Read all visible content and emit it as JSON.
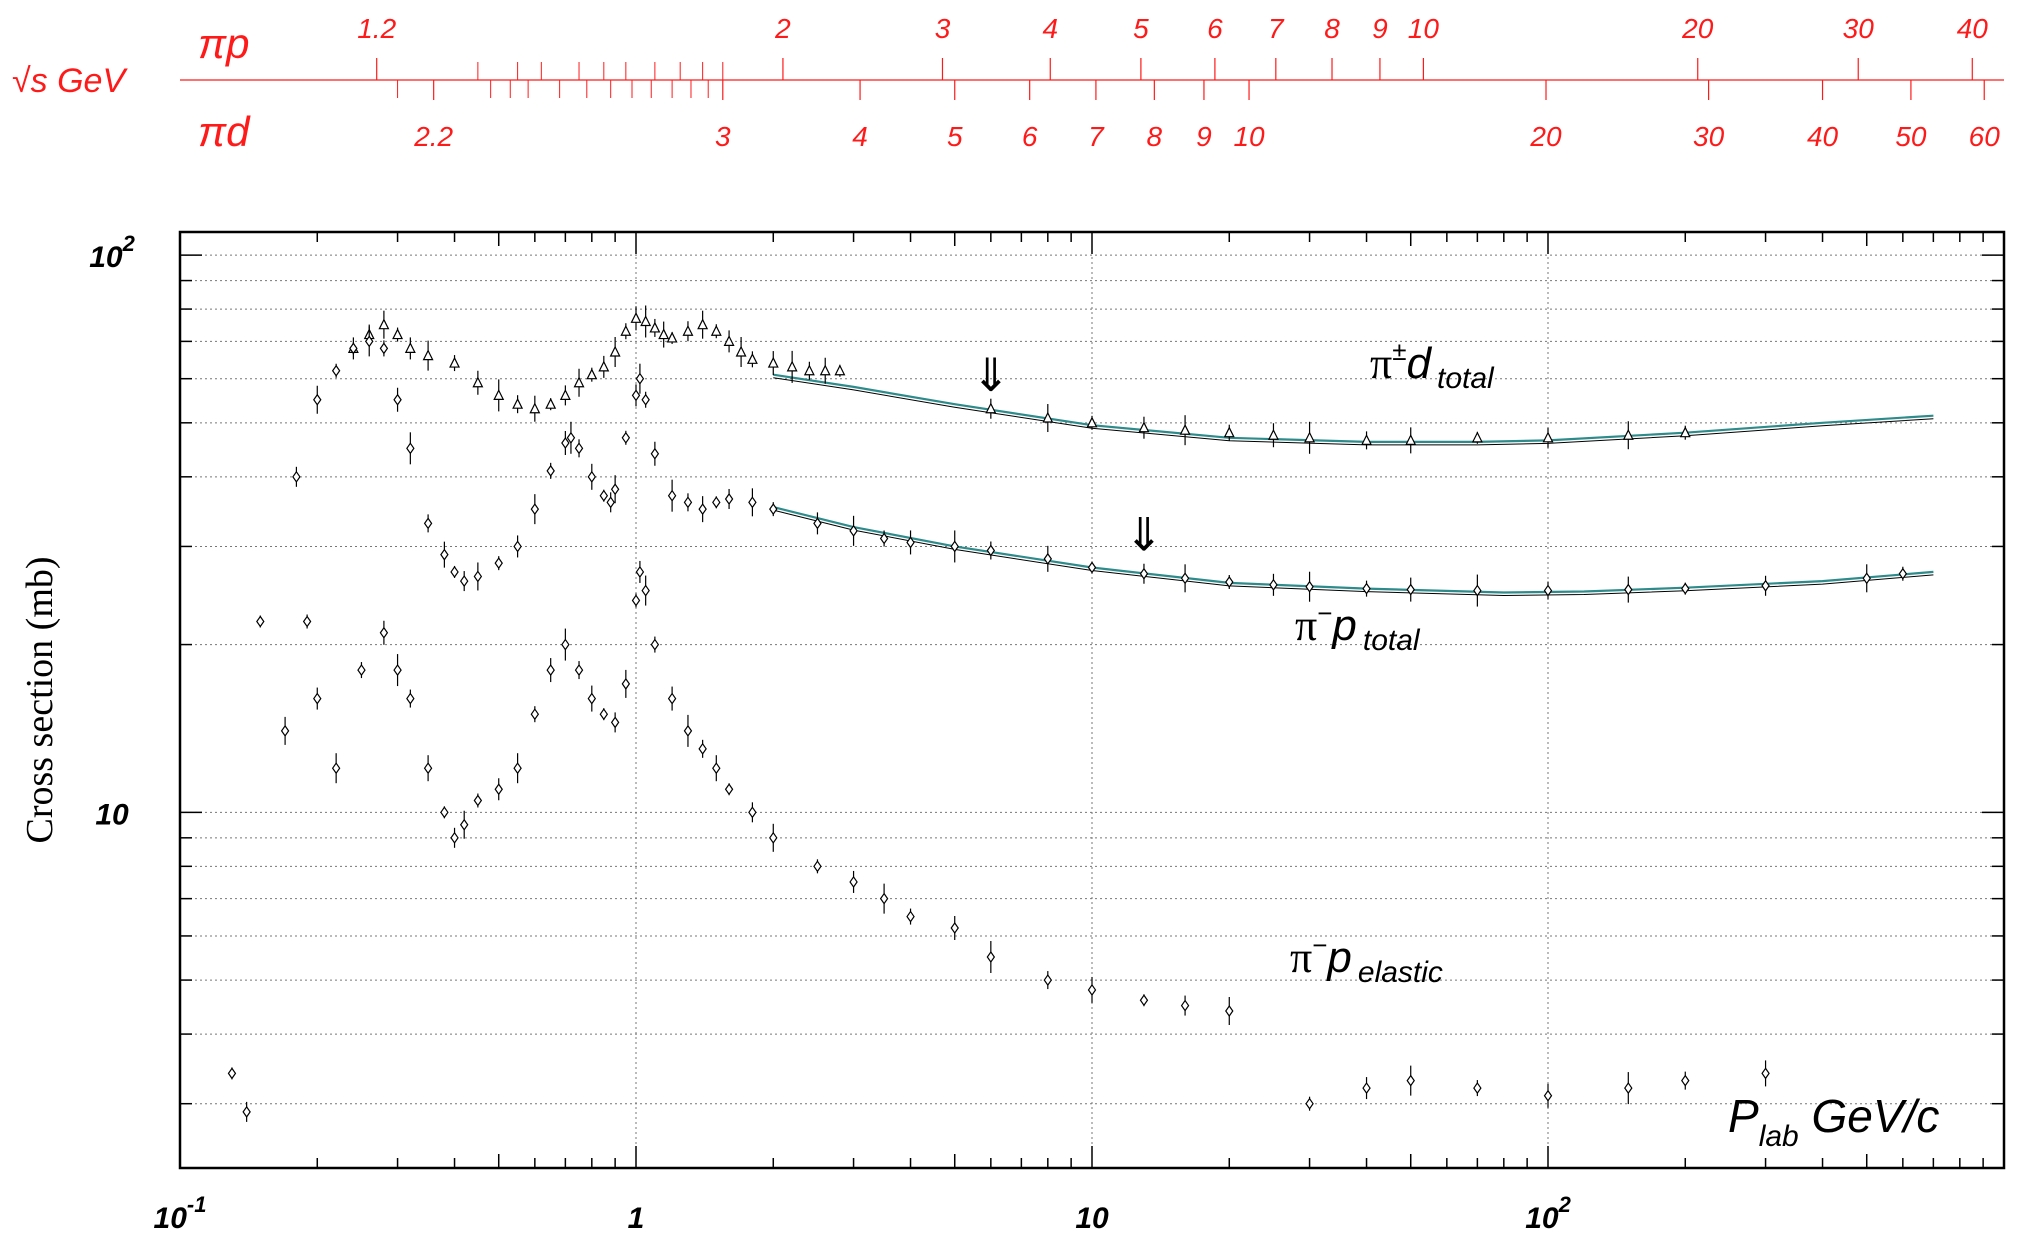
{
  "colors": {
    "accent_scale": "#ff1a1a",
    "axis": "#000000",
    "grid": "#777777",
    "fit_curve": "#2e8b8b",
    "data": "#000000"
  },
  "top_scale": {
    "root_s_label": "√s GeV",
    "pip_label": "πp",
    "pid_label": "πd",
    "pip_ticks": [
      {
        "label": "1.2",
        "p": 0.27
      },
      {
        "label": "2",
        "p": 2.1
      },
      {
        "label": "3",
        "p": 4.7
      },
      {
        "label": "4",
        "p": 8.1
      },
      {
        "label": "5",
        "p": 12.8
      },
      {
        "label": "6",
        "p": 18.6
      },
      {
        "label": "7",
        "p": 25.3
      },
      {
        "label": "8",
        "p": 33.6
      },
      {
        "label": "9",
        "p": 42.8
      },
      {
        "label": "10",
        "p": 53.3
      },
      {
        "label": "20",
        "p": 213
      },
      {
        "label": "30",
        "p": 479
      },
      {
        "label": "40",
        "p": 852
      }
    ],
    "pid_ticks": [
      {
        "label": "2.2",
        "p": 0.36
      },
      {
        "label": "3",
        "p": 1.55
      },
      {
        "label": "4",
        "p": 3.1
      },
      {
        "label": "5",
        "p": 5.0
      },
      {
        "label": "6",
        "p": 7.3
      },
      {
        "label": "7",
        "p": 10.2
      },
      {
        "label": "8",
        "p": 13.7
      },
      {
        "label": "9",
        "p": 17.6
      },
      {
        "label": "10",
        "p": 22.1
      },
      {
        "label": "20",
        "p": 99
      },
      {
        "label": "30",
        "p": 225
      },
      {
        "label": "40",
        "p": 400
      },
      {
        "label": "50",
        "p": 625
      },
      {
        "label": "60",
        "p": 905
      }
    ]
  },
  "chart_data": {
    "type": "scatter",
    "log_x": true,
    "log_y": true,
    "xlim": [
      0.1,
      1000
    ],
    "ylim": [
      2.3,
      110
    ],
    "x_tick_labels": [
      {
        "value": 0.1,
        "base": "10",
        "exp": "-1"
      },
      {
        "value": 1,
        "base": "1",
        "exp": ""
      },
      {
        "value": 10,
        "base": "10",
        "exp": ""
      },
      {
        "value": 100,
        "base": "10",
        "exp": "2"
      }
    ],
    "y_tick_labels": [
      {
        "value": 10,
        "base": "10",
        "exp": ""
      },
      {
        "value": 100,
        "base": "10",
        "exp": "2"
      }
    ],
    "ylabel": "Cross section (mb)",
    "xlabel": {
      "main": "P",
      "sub": "lab",
      "rest": " GeV/c"
    },
    "grid": true,
    "series": [
      {
        "name": "π±d total",
        "label_main": "π",
        "label_sup": "±",
        "label_p": "d",
        "label_sub": "total",
        "marker": "triangle",
        "points": [
          [
            0.24,
            68
          ],
          [
            0.26,
            72
          ],
          [
            0.28,
            75
          ],
          [
            0.3,
            72
          ],
          [
            0.32,
            68
          ],
          [
            0.35,
            66
          ],
          [
            0.4,
            64
          ],
          [
            0.45,
            59
          ],
          [
            0.5,
            56
          ],
          [
            0.55,
            54
          ],
          [
            0.6,
            53
          ],
          [
            0.65,
            54
          ],
          [
            0.7,
            56
          ],
          [
            0.75,
            59
          ],
          [
            0.8,
            61
          ],
          [
            0.85,
            63
          ],
          [
            0.9,
            67
          ],
          [
            0.95,
            73
          ],
          [
            1.0,
            77
          ],
          [
            1.05,
            76
          ],
          [
            1.1,
            74
          ],
          [
            1.15,
            72
          ],
          [
            1.2,
            71
          ],
          [
            1.3,
            73
          ],
          [
            1.4,
            75
          ],
          [
            1.5,
            73
          ],
          [
            1.6,
            70
          ],
          [
            1.7,
            67
          ],
          [
            1.8,
            65
          ],
          [
            2.0,
            64
          ],
          [
            2.2,
            63
          ],
          [
            2.4,
            62
          ],
          [
            2.6,
            62
          ],
          [
            2.8,
            62
          ],
          [
            6.0,
            53
          ],
          [
            8.0,
            51
          ],
          [
            10,
            50
          ],
          [
            13,
            49
          ],
          [
            16,
            48.5
          ],
          [
            20,
            48
          ],
          [
            25,
            47.5
          ],
          [
            30,
            47
          ],
          [
            40,
            46.5
          ],
          [
            50,
            46.5
          ],
          [
            70,
            47
          ],
          [
            100,
            47
          ],
          [
            150,
            47.5
          ],
          [
            200,
            48
          ]
        ],
        "fit": [
          [
            2.0,
            61
          ],
          [
            3.0,
            58
          ],
          [
            5,
            54
          ],
          [
            10,
            49.5
          ],
          [
            20,
            47
          ],
          [
            40,
            46.2
          ],
          [
            70,
            46.2
          ],
          [
            100,
            46.5
          ],
          [
            200,
            48
          ],
          [
            400,
            50
          ],
          [
            700,
            51.5
          ]
        ]
      },
      {
        "name": "π−p total",
        "label_main": "π",
        "label_sup": "−",
        "label_p": "p",
        "label_sub": "total",
        "marker": "diamond",
        "points": [
          [
            0.15,
            22
          ],
          [
            0.18,
            40
          ],
          [
            0.2,
            55
          ],
          [
            0.22,
            62
          ],
          [
            0.24,
            68
          ],
          [
            0.26,
            70
          ],
          [
            0.28,
            68
          ],
          [
            0.3,
            55
          ],
          [
            0.32,
            45
          ],
          [
            0.35,
            33
          ],
          [
            0.38,
            29
          ],
          [
            0.4,
            27
          ],
          [
            0.42,
            26
          ],
          [
            0.45,
            26.5
          ],
          [
            0.5,
            28
          ],
          [
            0.55,
            30
          ],
          [
            0.6,
            35
          ],
          [
            0.65,
            41
          ],
          [
            0.7,
            46
          ],
          [
            0.72,
            47
          ],
          [
            0.75,
            45
          ],
          [
            0.8,
            40
          ],
          [
            0.85,
            37
          ],
          [
            0.88,
            36
          ],
          [
            0.9,
            38
          ],
          [
            0.95,
            47
          ],
          [
            1.0,
            56
          ],
          [
            1.02,
            60
          ],
          [
            1.05,
            55
          ],
          [
            1.1,
            44
          ],
          [
            1.2,
            37
          ],
          [
            1.3,
            36
          ],
          [
            1.4,
            35
          ],
          [
            1.5,
            36
          ],
          [
            1.6,
            36.5
          ],
          [
            1.8,
            36
          ],
          [
            2.0,
            35
          ],
          [
            2.5,
            33
          ],
          [
            3.0,
            32
          ],
          [
            3.5,
            31
          ],
          [
            4.0,
            30.5
          ],
          [
            5.0,
            30
          ],
          [
            6.0,
            29.5
          ],
          [
            8.0,
            28.5
          ],
          [
            10,
            27.5
          ],
          [
            13,
            26.8
          ],
          [
            16,
            26.3
          ],
          [
            20,
            25.9
          ],
          [
            25,
            25.6
          ],
          [
            30,
            25.4
          ],
          [
            40,
            25.2
          ],
          [
            50,
            25.1
          ],
          [
            70,
            25.0
          ],
          [
            100,
            25.0
          ],
          [
            150,
            25.1
          ],
          [
            200,
            25.2
          ],
          [
            300,
            25.5
          ],
          [
            500,
            26.3
          ],
          [
            600,
            26.8
          ]
        ],
        "fit": [
          [
            2.0,
            35.3
          ],
          [
            3.0,
            32.5
          ],
          [
            5,
            30
          ],
          [
            10,
            27.5
          ],
          [
            20,
            25.8
          ],
          [
            40,
            25.2
          ],
          [
            80,
            24.8
          ],
          [
            120,
            24.9
          ],
          [
            200,
            25.3
          ],
          [
            400,
            26
          ],
          [
            700,
            27
          ]
        ]
      },
      {
        "name": "π−p elastic",
        "label_main": "π",
        "label_sup": "−",
        "label_p": "p",
        "label_sub": "elastic",
        "marker": "diamond",
        "points": [
          [
            0.13,
            3.4
          ],
          [
            0.14,
            2.9
          ],
          [
            0.17,
            14
          ],
          [
            0.19,
            22
          ],
          [
            0.2,
            16
          ],
          [
            0.22,
            12
          ],
          [
            0.25,
            18
          ],
          [
            0.28,
            21
          ],
          [
            0.3,
            18
          ],
          [
            0.32,
            16
          ],
          [
            0.35,
            12
          ],
          [
            0.38,
            10
          ],
          [
            0.4,
            9
          ],
          [
            0.42,
            9.5
          ],
          [
            0.45,
            10.5
          ],
          [
            0.5,
            11
          ],
          [
            0.55,
            12
          ],
          [
            0.6,
            15
          ],
          [
            0.65,
            18
          ],
          [
            0.7,
            20
          ],
          [
            0.75,
            18
          ],
          [
            0.8,
            16
          ],
          [
            0.85,
            15
          ],
          [
            0.9,
            14.5
          ],
          [
            0.95,
            17
          ],
          [
            1.0,
            24
          ],
          [
            1.02,
            27
          ],
          [
            1.05,
            25
          ],
          [
            1.1,
            20
          ],
          [
            1.2,
            16
          ],
          [
            1.3,
            14
          ],
          [
            1.4,
            13
          ],
          [
            1.5,
            12
          ],
          [
            1.6,
            11
          ],
          [
            1.8,
            10
          ],
          [
            2.0,
            9
          ],
          [
            2.5,
            8
          ],
          [
            3.0,
            7.5
          ],
          [
            3.5,
            7
          ],
          [
            4.0,
            6.5
          ],
          [
            5.0,
            6.2
          ],
          [
            6.0,
            5.5
          ],
          [
            8.0,
            5.0
          ],
          [
            10,
            4.8
          ],
          [
            13,
            4.6
          ],
          [
            16,
            4.5
          ],
          [
            20,
            4.4
          ],
          [
            30,
            3.0
          ],
          [
            40,
            3.2
          ],
          [
            50,
            3.3
          ],
          [
            70,
            3.2
          ],
          [
            100,
            3.1
          ],
          [
            150,
            3.2
          ],
          [
            200,
            3.3
          ],
          [
            300,
            3.4
          ]
        ]
      }
    ],
    "annotations": [
      {
        "type": "arrow",
        "symbol": "⇓",
        "x": 6.0,
        "y": 57
      },
      {
        "type": "arrow",
        "symbol": "⇓",
        "x": 13.0,
        "y": 29.5
      }
    ]
  }
}
